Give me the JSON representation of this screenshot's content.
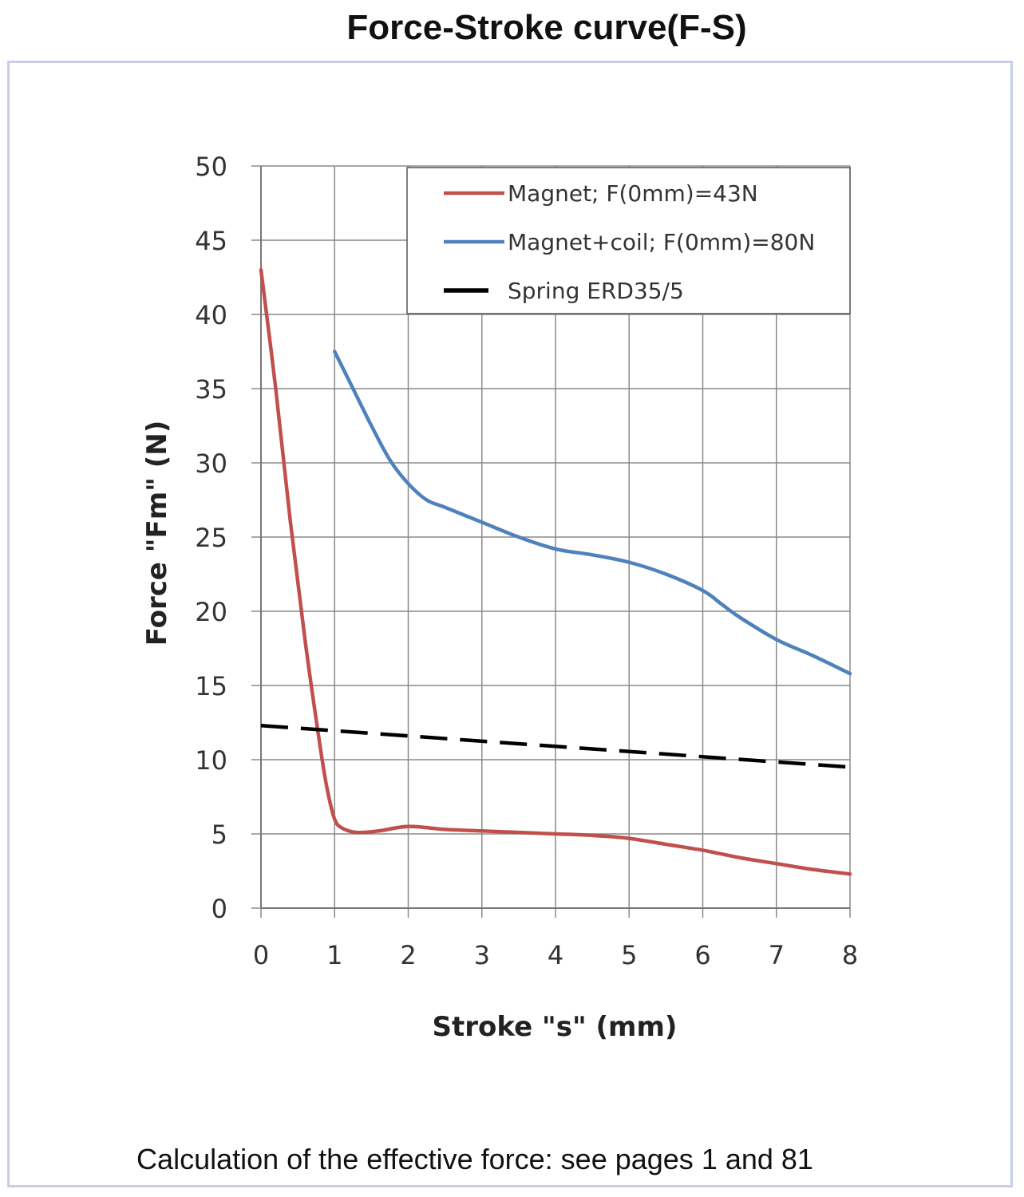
{
  "page": {
    "title": "Force-Stroke curve(F-S)",
    "footer": "Calculation of the effective force: see pages 1 and 81"
  },
  "chart_data": {
    "type": "line",
    "xlabel": "Stroke \"s\" (mm)",
    "ylabel": "Force \"Fm\" (N)",
    "xlim": [
      0,
      8
    ],
    "ylim": [
      0,
      50
    ],
    "xticks": [
      "0",
      "1",
      "2",
      "3",
      "4",
      "5",
      "6",
      "7",
      "8"
    ],
    "yticks": [
      "0",
      "5",
      "10",
      "15",
      "20",
      "25",
      "30",
      "35",
      "40",
      "45",
      "50"
    ],
    "grid": true,
    "legend_position": "top-right",
    "series": [
      {
        "name": "Magnet; F(0mm)=43N",
        "color": "#c0504d",
        "style": "solid",
        "x": [
          0,
          0.2,
          0.4,
          0.6,
          0.8,
          0.9,
          1.0,
          1.1,
          1.3,
          1.6,
          2.0,
          2.5,
          3.0,
          3.5,
          4.0,
          4.5,
          5.0,
          5.5,
          6.0,
          6.5,
          7.0,
          7.5,
          8.0
        ],
        "y": [
          43,
          35,
          26,
          18,
          11,
          8,
          6,
          5.4,
          5.1,
          5.2,
          5.5,
          5.3,
          5.2,
          5.1,
          5.0,
          4.9,
          4.7,
          4.3,
          3.9,
          3.4,
          3.0,
          2.6,
          2.3
        ]
      },
      {
        "name": "Magnet+coil; F(0mm)=80N",
        "color": "#4f81bd",
        "style": "solid",
        "x": [
          1.0,
          1.25,
          1.5,
          1.75,
          2.0,
          2.25,
          2.5,
          3.0,
          3.5,
          4.0,
          4.5,
          5.0,
          5.5,
          6.0,
          6.25,
          6.5,
          7.0,
          7.5,
          8.0
        ],
        "y": [
          37.5,
          35.0,
          32.5,
          30.2,
          28.6,
          27.5,
          27.0,
          26.0,
          25.0,
          24.2,
          23.8,
          23.3,
          22.5,
          21.4,
          20.5,
          19.6,
          18.1,
          17.0,
          15.8
        ]
      },
      {
        "name": "Spring ERD35/5",
        "color": "#000000",
        "style": "dashed",
        "x": [
          0,
          8
        ],
        "y": [
          12.3,
          9.5
        ]
      }
    ]
  }
}
